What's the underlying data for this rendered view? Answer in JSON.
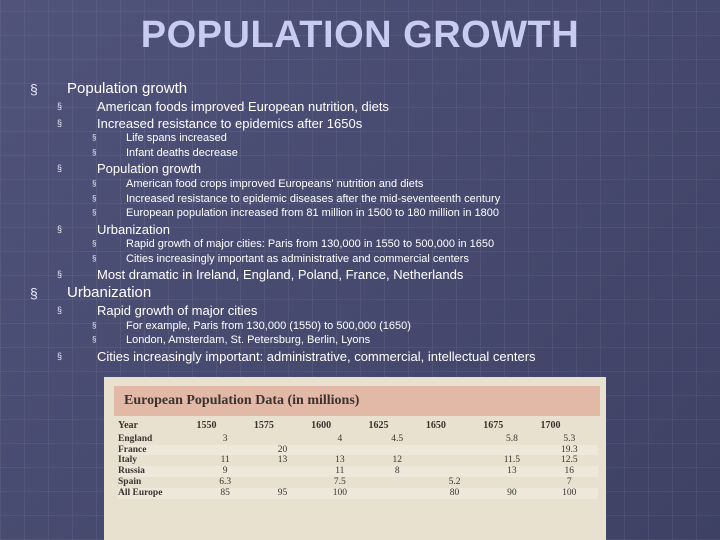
{
  "title": "POPULATION GROWTH",
  "bullets": {
    "symbol": "§",
    "pg_header": "Population growth",
    "pg_american_foods": "American foods improved European nutrition, diets",
    "pg_resistance": "Increased resistance to epidemics after 1650s",
    "pg_life_spans": "Life spans increased",
    "pg_infant_deaths": "Infant deaths decrease",
    "pg_sub_header": "Population growth",
    "pg_food_crops": "American food crops improved Europeans' nutrition and diets",
    "pg_resistance_17th": "Increased resistance to epidemic diseases after the mid-seventeenth century",
    "pg_european_pop": "European population increased from 81 million in 1500 to 180 million in 1800",
    "urb_sub_header": "Urbanization",
    "urb_rapid_growth_paris": "Rapid growth of major cities: Paris from 130,000 in 1550 to 500,000 in 1650",
    "urb_cities_admin": "Cities increasingly important as administrative and commercial centers",
    "most_dramatic": "Most dramatic in Ireland, England, Poland, France, Netherlands",
    "urb_header": "Urbanization",
    "urb_rapid_major": "Rapid growth of major cities",
    "urb_for_example": "For example, Paris from 130,000 (1550) to 500,000 (1650)",
    "urb_london": "London, Amsterdam, St. Petersburg, Berlin, Lyons",
    "urb_cities_important": "Cities increasingly important: administrative, commercial, intellectual centers"
  },
  "table": {
    "title": "European Population Data (in millions)",
    "header": [
      "Year",
      "1550",
      "1575",
      "1600",
      "1625",
      "1650",
      "1675",
      "1700"
    ],
    "rows": [
      [
        "England",
        "3",
        "",
        "4",
        "4.5",
        "",
        "5.8",
        "5.3"
      ],
      [
        "France",
        "",
        "20",
        "",
        "",
        "",
        "",
        "19.3"
      ],
      [
        "Italy",
        "11",
        "13",
        "13",
        "12",
        "",
        "11.5",
        "12.5"
      ],
      [
        "Russia",
        "9",
        "",
        "11",
        "8",
        "",
        "13",
        "16"
      ],
      [
        "Spain",
        "6.3",
        "",
        "7.5",
        "",
        "5.2",
        "",
        "7"
      ],
      [
        "All Europe",
        "85",
        "95",
        "100",
        "",
        "80",
        "90",
        "100"
      ]
    ]
  },
  "colors": {
    "background": "#474a6e",
    "title": "#c9ccf2",
    "table_bg": "#e9e1cf",
    "table_title_bar": "#e2b8a6"
  }
}
